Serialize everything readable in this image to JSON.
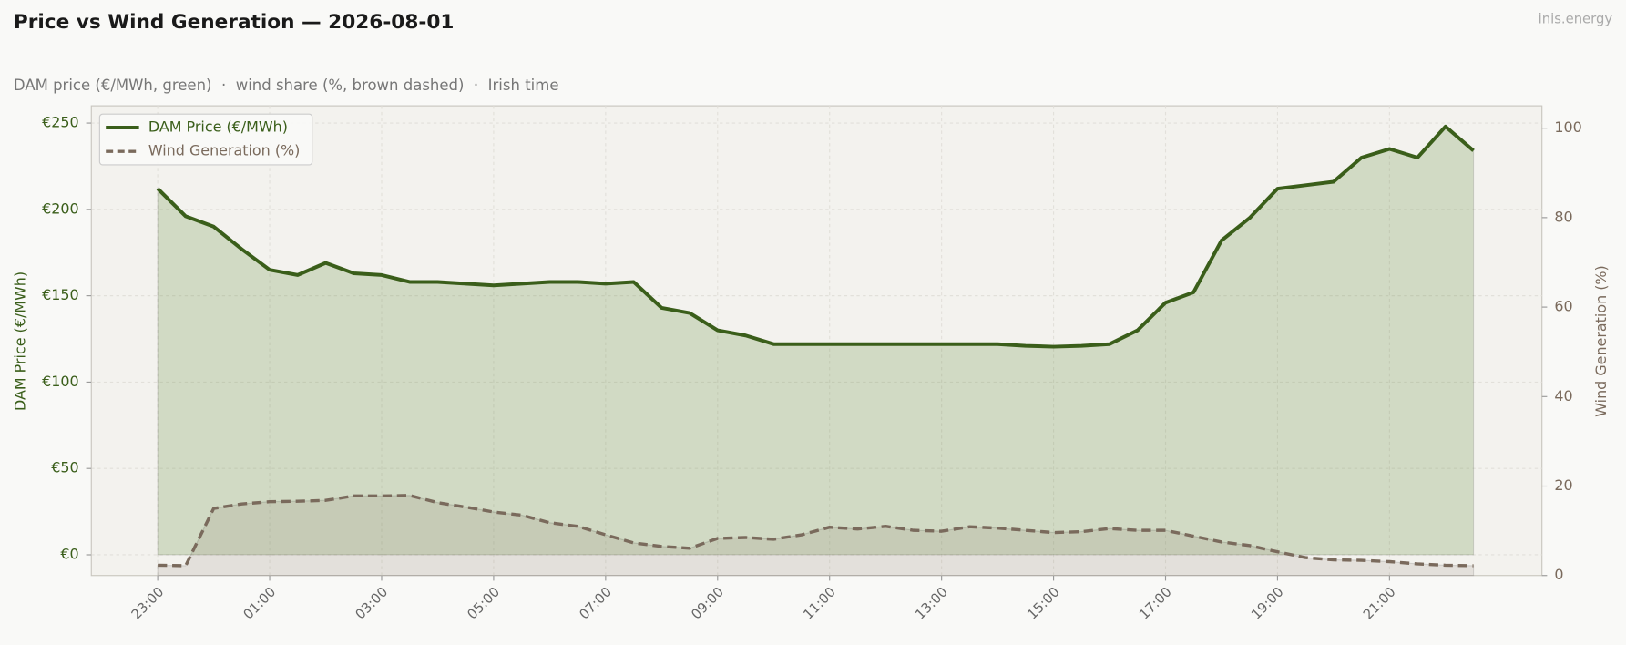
{
  "chart_data": {
    "type": "line",
    "title": "Price vs Wind Generation — 2026-08-01",
    "subtitle": "DAM price (€/MWh, green)  ·  wind share (%, brown dashed)  ·  Irish time",
    "watermark": "inis.energy",
    "y_label": "DAM Price (€/MWh)",
    "y2_label": "Wind Generation (%)",
    "categories": [
      "23:00",
      null,
      null,
      null,
      "01:00",
      null,
      null,
      null,
      "03:00",
      null,
      null,
      null,
      "05:00",
      null,
      null,
      null,
      "07:00",
      null,
      null,
      null,
      "09:00",
      null,
      null,
      null,
      "11:00",
      null,
      null,
      null,
      "13:00",
      null,
      null,
      null,
      "15:00",
      null,
      null,
      null,
      "17:00",
      null,
      null,
      null,
      "19:00",
      null,
      null,
      null,
      "21:00",
      null,
      null,
      null
    ],
    "series": [
      {
        "name": "DAM Price (€/MWh)",
        "color": "#3a5e1a",
        "axis": "y",
        "values": [
          212,
          196,
          190,
          177,
          165,
          162,
          169,
          163,
          162,
          158,
          158,
          157,
          156,
          157,
          158,
          158,
          157,
          158,
          143,
          140,
          130,
          127,
          122,
          122,
          122,
          122,
          122,
          122,
          122,
          122,
          122,
          121,
          120.5,
          121,
          122,
          130,
          146,
          152,
          182,
          195,
          212,
          214,
          216,
          230,
          235,
          230,
          248,
          234
        ]
      },
      {
        "name": "Wind Generation (%)",
        "color": "#7a6a5c",
        "axis": "y2",
        "values": [
          2.3,
          2.2,
          15,
          16,
          16.5,
          16.6,
          16.8,
          17.8,
          17.8,
          17.9,
          16.3,
          15.3,
          14.2,
          13.5,
          11.8,
          11,
          9.1,
          7.3,
          6.5,
          6.1,
          8.3,
          8.5,
          8.1,
          9.1,
          10.8,
          10.4,
          11,
          10.1,
          9.9,
          10.9,
          10.6,
          10.1,
          9.6,
          9.8,
          10.5,
          10.1,
          10.1,
          8.8,
          7.5,
          6.7,
          5.3,
          4,
          3.5,
          3.4,
          3.1,
          2.6,
          2.3,
          2.2
        ]
      }
    ],
    "ylim": [
      -12,
      260
    ],
    "yticks": [
      {
        "value": 0,
        "label": "€0"
      },
      {
        "value": 50,
        "label": "€50"
      },
      {
        "value": 100,
        "label": "€100"
      },
      {
        "value": 150,
        "label": "€150"
      },
      {
        "value": 200,
        "label": "€200"
      },
      {
        "value": 250,
        "label": "€250"
      }
    ],
    "y2lim": [
      0,
      105
    ],
    "y2ticks": [
      0,
      20,
      40,
      60,
      80,
      100
    ],
    "grid": true,
    "legend": "upper left"
  }
}
